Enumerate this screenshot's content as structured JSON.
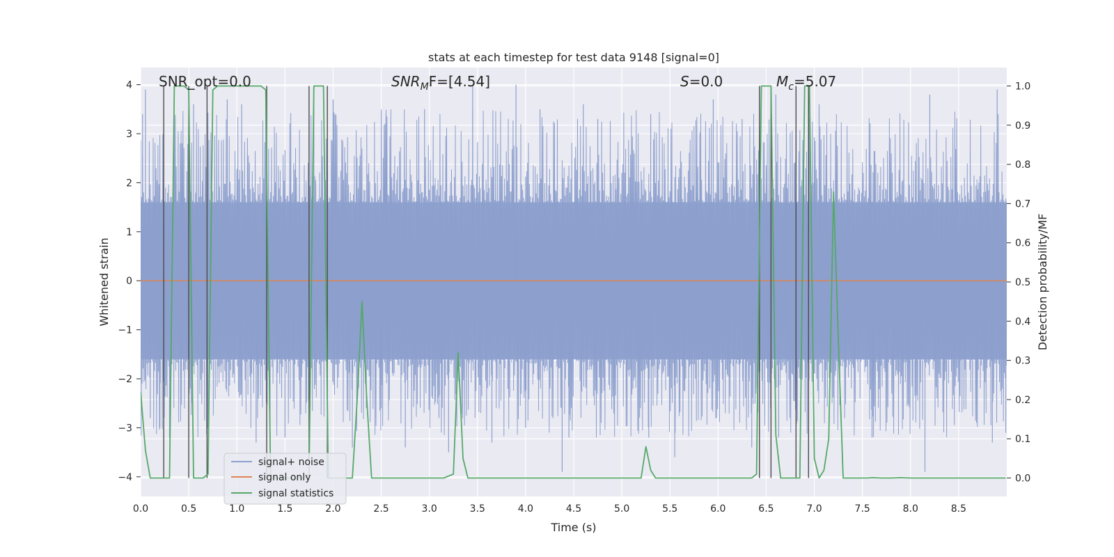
{
  "chart_data": {
    "type": "line",
    "title": "stats at each timestep for test data 9148 [signal=0]",
    "xlabel": "Time (s)",
    "ylabel": "Whitened strain",
    "y2label": "Detection probability/MF",
    "xlim": [
      0,
      9
    ],
    "ylim": [
      -4.4,
      4.35
    ],
    "y2lim": [
      -0.047,
      1.047
    ],
    "xticks": [
      "0.0",
      "0.5",
      "1.0",
      "1.5",
      "2.0",
      "2.5",
      "3.0",
      "3.5",
      "4.0",
      "4.5",
      "5.0",
      "5.5",
      "6.0",
      "6.5",
      "7.0",
      "7.5",
      "8.0",
      "8.5"
    ],
    "yticks": [
      "4",
      "3",
      "2",
      "1",
      "0",
      "−1",
      "−2",
      "−3",
      "−4"
    ],
    "y2ticks": [
      "1.0",
      "0.9",
      "0.8",
      "0.7",
      "0.6",
      "0.5",
      "0.4",
      "0.3",
      "0.2",
      "0.1",
      "0.0"
    ],
    "annotations": {
      "snr_opt": "SNR_opt=0.0",
      "snr_mf_base": "SNR",
      "snr_mf_sub": "M",
      "snr_mf_rest": "F=[4.54]",
      "s_italic": "S",
      "s_rest": "=0.0",
      "mc_base": "M",
      "mc_sub": "c",
      "mc_rest": "=5.07"
    },
    "legend": {
      "position": "lower-left",
      "entries": [
        {
          "label": "signal+ noise",
          "color": "#8c9fcd"
        },
        {
          "label": "signal only",
          "color": "#dd8452"
        },
        {
          "label": "signal statistics",
          "color": "#55a868"
        }
      ]
    },
    "series": [
      {
        "name": "signal+ noise",
        "kind": "noise",
        "color": "#8c9fcd",
        "band_upper": 1.6,
        "band_lower": -1.6,
        "notable_peaks_x": [
          0.02,
          0.05,
          0.55,
          0.9,
          1.05,
          1.3,
          1.8,
          2.0,
          2.55,
          2.95,
          3.45,
          3.9,
          4.15,
          4.6,
          4.75,
          5.3,
          5.95,
          6.25,
          6.6,
          7.05,
          8.2,
          8.9
        ],
        "notable_peaks_y": [
          3.4,
          3.9,
          3.6,
          3.7,
          3.6,
          3.6,
          3.8,
          3.7,
          3.4,
          3.5,
          4.0,
          4.0,
          3.5,
          3.6,
          3.3,
          3.4,
          3.7,
          3.3,
          3.8,
          3.6,
          3.8,
          3.9
        ],
        "notable_troughs_x": [
          0.1,
          0.2,
          0.3,
          0.7,
          1.2,
          1.5,
          2.2,
          2.5,
          2.75,
          3.1,
          3.2,
          3.65,
          4.0,
          4.38,
          4.45,
          5.28,
          5.55,
          6.35,
          6.63,
          7.6,
          8.15,
          8.85,
          8.99
        ],
        "notable_troughs_y": [
          -2.8,
          -3.0,
          -3.2,
          -3.0,
          -3.3,
          -3.2,
          -3.4,
          -2.6,
          -3.4,
          -2.8,
          -3.5,
          -3.3,
          -3.0,
          -3.9,
          -3.2,
          -3.2,
          -3.6,
          -3.4,
          -3.2,
          -3.2,
          -3.9,
          -3.3,
          -3.1
        ]
      },
      {
        "name": "signal only",
        "kind": "line",
        "color": "#dd8452",
        "x": [
          0,
          9
        ],
        "y": [
          0,
          0
        ]
      },
      {
        "name": "signal statistics",
        "kind": "line",
        "axis": "right",
        "color": "#55a868",
        "x": [
          0,
          0.05,
          0.1,
          0.15,
          0.2,
          0.25,
          0.3,
          0.35,
          0.4,
          0.45,
          0.5,
          0.55,
          0.6,
          0.65,
          0.7,
          0.75,
          0.8,
          0.85,
          0.9,
          0.95,
          1.0,
          1.05,
          1.1,
          1.15,
          1.2,
          1.25,
          1.3,
          1.35,
          1.4,
          1.45,
          1.5,
          1.55,
          1.6,
          1.65,
          1.7,
          1.75,
          1.8,
          1.85,
          1.9,
          1.95,
          2.0,
          2.05,
          2.1,
          2.15,
          2.2,
          2.25,
          2.3,
          2.35,
          2.4,
          2.45,
          2.5,
          3.15,
          3.25,
          3.3,
          3.35,
          3.4,
          3.45,
          5.15,
          5.2,
          5.25,
          5.3,
          5.35,
          5.4,
          6.35,
          6.4,
          6.45,
          6.5,
          6.55,
          6.6,
          6.65,
          6.7,
          6.75,
          6.8,
          6.85,
          6.9,
          6.95,
          7.0,
          7.05,
          7.1,
          7.15,
          7.2,
          7.25,
          7.3,
          7.55,
          7.6,
          7.7,
          7.8,
          7.9,
          8.0,
          8.5,
          8.99
        ],
        "y": [
          0.22,
          0.07,
          0,
          0,
          0,
          0,
          0,
          1.0,
          1.0,
          1.0,
          0.99,
          0,
          0,
          0,
          0.01,
          0.99,
          1.0,
          1.0,
          1.0,
          1.0,
          1.0,
          1.0,
          1.0,
          1.0,
          1.0,
          1.0,
          0.99,
          0,
          0,
          0,
          0,
          0,
          0,
          0,
          0,
          0.01,
          1.0,
          1.0,
          1.0,
          0,
          0,
          0,
          0,
          0,
          0,
          0.2,
          0.45,
          0.2,
          0,
          0,
          0,
          0,
          0.01,
          0.32,
          0.05,
          0,
          0,
          0,
          0,
          0.08,
          0.02,
          0,
          0,
          0,
          0.01,
          1.0,
          1.0,
          1.0,
          0.11,
          0,
          0,
          0,
          0,
          0,
          1.0,
          1.0,
          0.05,
          0,
          0.02,
          0.1,
          0.73,
          0.35,
          0,
          0,
          0.001,
          0,
          0,
          0.001,
          0,
          0,
          0
        ]
      }
    ],
    "vertical_markers_x": [
      0.24,
      0.5,
      0.69,
      1.31,
      1.75,
      1.94,
      6.43,
      6.55,
      6.81,
      6.94
    ]
  }
}
